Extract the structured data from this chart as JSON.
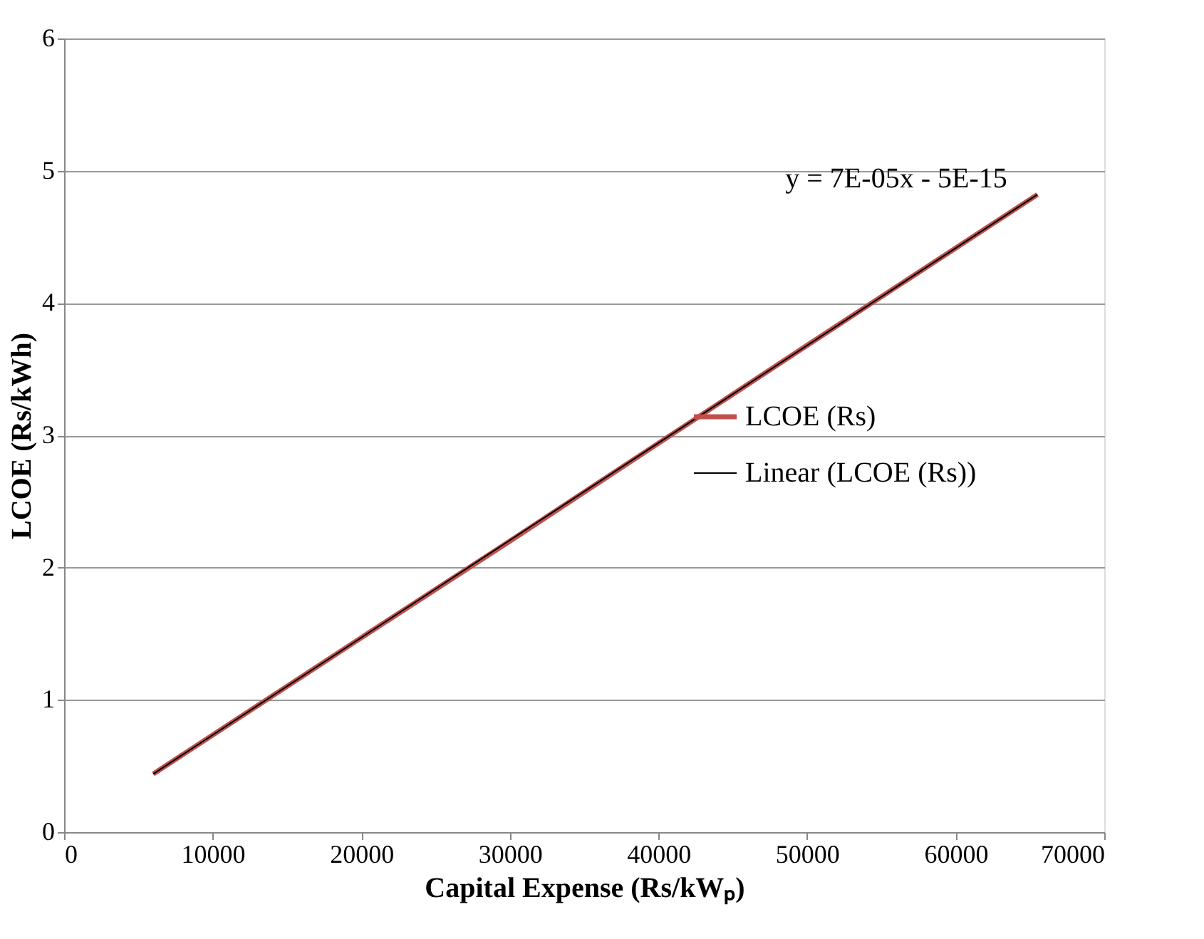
{
  "chart_data": {
    "type": "line",
    "xlabel": "Capital Expense (Rs/kWₚ)",
    "ylabel": "LCOE (Rs/kWh)",
    "xlim": [
      0,
      70000
    ],
    "xticks": [
      0,
      10000,
      20000,
      30000,
      40000,
      50000,
      60000,
      70000
    ],
    "ylim": [
      0,
      6
    ],
    "yticks": [
      0,
      1,
      2,
      3,
      4,
      5,
      6
    ],
    "grid": "y",
    "legend": "right",
    "marker": "none",
    "line_style": "solid",
    "series": [
      {
        "name": "LCOE (Rs)",
        "color": "#c0504d",
        "x": [
          6000,
          20000,
          30000,
          40000,
          50000,
          65500
        ],
        "values": [
          0.44,
          1.47,
          2.2,
          2.94,
          3.68,
          4.82
        ]
      },
      {
        "name": "Linear (LCOE (Rs))",
        "color": "#000000",
        "type": "line",
        "x": [
          6000,
          65500
        ],
        "values": [
          0.44,
          4.82
        ]
      }
    ],
    "annotations": [
      "y = 7E-05x - 5E-15"
    ]
  }
}
